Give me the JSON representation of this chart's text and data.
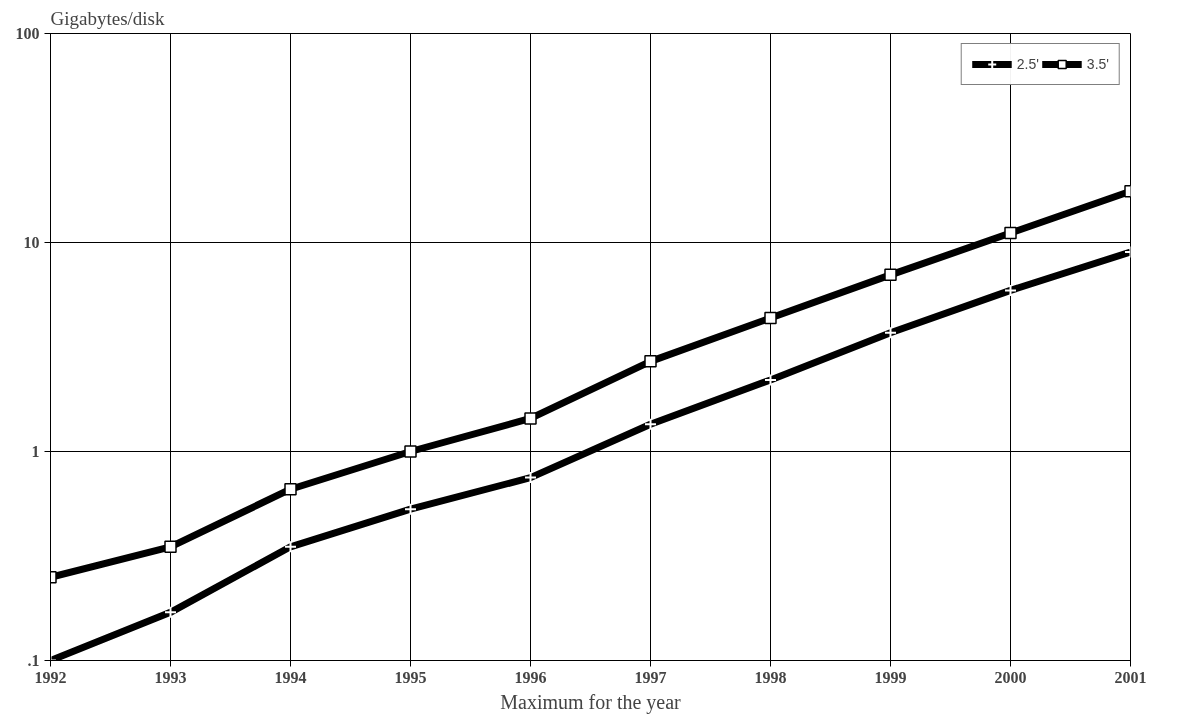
{
  "chart_data": {
    "type": "line",
    "ylabel": "Gigabytes/disk",
    "xlabel": "Maximum for the year",
    "x": [
      1992,
      1993,
      1994,
      1995,
      1996,
      1997,
      1998,
      1999,
      2000,
      2001
    ],
    "series": [
      {
        "name": "2.5'",
        "color": "#000000",
        "marker": "cross",
        "values": [
          0.1,
          0.17,
          0.35,
          0.53,
          0.75,
          1.35,
          2.2,
          3.7,
          5.9,
          9.0
        ]
      },
      {
        "name": "3.5'",
        "color": "#000000",
        "marker": "square",
        "values": [
          0.25,
          0.35,
          0.66,
          1.0,
          1.44,
          2.7,
          4.35,
          7.0,
          11.1,
          17.6
        ]
      }
    ],
    "log": true,
    "xlim": [
      1992,
      2001
    ],
    "ylim": [
      0.1,
      100
    ],
    "xticks": [
      1992,
      1993,
      1994,
      1995,
      1996,
      1997,
      1998,
      1999,
      2000,
      2001
    ],
    "yticks": [
      {
        "value": 0.1,
        "label": ".1"
      },
      1,
      10,
      100
    ],
    "grid": true,
    "legend": "top right",
    "line_style": "solid"
  }
}
